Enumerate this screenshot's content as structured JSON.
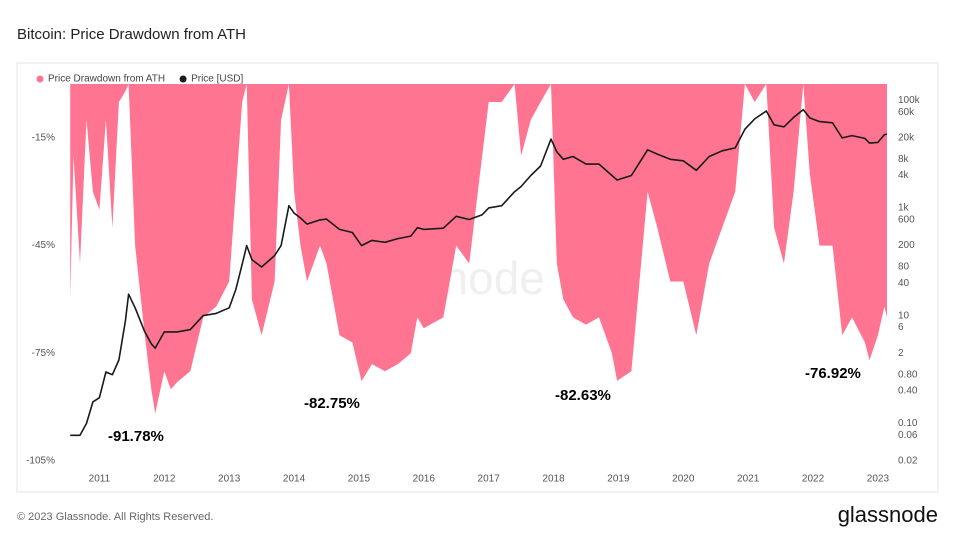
{
  "chart_data": {
    "type": "area-line",
    "title": "Bitcoin: Price Drawdown from ATH",
    "x": [
      2010.55,
      2010.6,
      2010.7,
      2010.8,
      2010.9,
      2011.0,
      2011.1,
      2011.2,
      2011.3,
      2011.4,
      2011.45,
      2011.55,
      2011.7,
      2011.8,
      2011.86,
      2012.0,
      2012.1,
      2012.2,
      2012.4,
      2012.6,
      2012.8,
      2013.0,
      2013.1,
      2013.2,
      2013.27,
      2013.35,
      2013.5,
      2013.7,
      2013.8,
      2013.92,
      2014.0,
      2014.1,
      2014.2,
      2014.4,
      2014.5,
      2014.7,
      2014.9,
      2015.04,
      2015.2,
      2015.4,
      2015.6,
      2015.8,
      2015.9,
      2016.0,
      2016.3,
      2016.5,
      2016.7,
      2016.9,
      2017.0,
      2017.2,
      2017.4,
      2017.5,
      2017.65,
      2017.8,
      2017.96,
      2018.05,
      2018.15,
      2018.3,
      2018.5,
      2018.7,
      2018.9,
      2018.98,
      2019.2,
      2019.45,
      2019.6,
      2019.8,
      2020.0,
      2020.2,
      2020.4,
      2020.6,
      2020.8,
      2020.95,
      2021.1,
      2021.28,
      2021.4,
      2021.55,
      2021.7,
      2021.85,
      2021.95,
      2022.1,
      2022.3,
      2022.45,
      2022.6,
      2022.8,
      2022.87,
      2023.0,
      2023.1,
      2023.14
    ],
    "series": [
      {
        "name": "Price Drawdown from ATH",
        "color": "#ff7591",
        "values": [
          -60,
          -20,
          -50,
          -10,
          -30,
          -35,
          -10,
          -40,
          -5,
          -2,
          0,
          -45,
          -70,
          -85,
          -91.78,
          -80,
          -85,
          -83,
          -80,
          -65,
          -62,
          -55,
          -30,
          -5,
          0,
          -60,
          -70,
          -55,
          -10,
          0,
          -30,
          -45,
          -55,
          -45,
          -50,
          -70,
          -72,
          -82.75,
          -78,
          -80,
          -78,
          -75,
          -65,
          -68,
          -65,
          -45,
          -50,
          -20,
          -5,
          -5,
          0,
          -20,
          -10,
          -5,
          0,
          -50,
          -60,
          -65,
          -67,
          -65,
          -75,
          -82.63,
          -80,
          -30,
          -40,
          -55,
          -55,
          -70,
          -50,
          -40,
          -30,
          0,
          -5,
          0,
          -40,
          -50,
          -30,
          0,
          -25,
          -45,
          -45,
          -70,
          -65,
          -72,
          -76.92,
          -70,
          -62,
          -65
        ]
      },
      {
        "name": "Price [USD]",
        "color": "#1a1a1a",
        "axis": "y2",
        "values": [
          0.06,
          0.06,
          0.06,
          0.1,
          0.25,
          0.3,
          0.9,
          0.8,
          1.5,
          8,
          25,
          14,
          5,
          3,
          2.5,
          5,
          5,
          5,
          5.5,
          10,
          11,
          14,
          30,
          90,
          200,
          110,
          80,
          130,
          200,
          1100,
          800,
          650,
          500,
          600,
          620,
          400,
          350,
          200,
          250,
          230,
          270,
          300,
          430,
          400,
          420,
          700,
          610,
          750,
          1000,
          1100,
          2000,
          2500,
          4000,
          6000,
          19000,
          11000,
          8000,
          9000,
          6500,
          6500,
          4000,
          3300,
          4000,
          12000,
          10000,
          8000,
          7500,
          5000,
          9000,
          11500,
          13000,
          29000,
          45000,
          63000,
          35000,
          32000,
          48000,
          67000,
          47000,
          40000,
          38000,
          20000,
          22000,
          19500,
          16000,
          16500,
          23000,
          23500
        ]
      }
    ],
    "xlim": [
      2010.5,
      2023.14
    ],
    "xticks": [
      2011,
      2012,
      2013,
      2014,
      2015,
      2016,
      2017,
      2018,
      2019,
      2020,
      2021,
      2022,
      2023
    ],
    "ylim": [
      -105,
      0
    ],
    "yticks": [
      {
        "value": -15,
        "label": "-15%"
      },
      {
        "value": -45,
        "label": "-45%"
      },
      {
        "value": -75,
        "label": "-75%"
      },
      {
        "value": -105,
        "label": "-105%"
      }
    ],
    "y2lim": [
      0.02,
      200000
    ],
    "y2_log": true,
    "y2ticks": [
      {
        "value": 100000,
        "label": "100k"
      },
      {
        "value": 60000,
        "label": "60k"
      },
      {
        "value": 20000,
        "label": "20k"
      },
      {
        "value": 8000,
        "label": "8k"
      },
      {
        "value": 4000,
        "label": "4k"
      },
      {
        "value": 1000,
        "label": "1k"
      },
      600,
      200,
      80,
      40,
      10,
      6,
      2,
      {
        "value": 0.8,
        "label": "0.80"
      },
      {
        "value": 0.4,
        "label": "0.40"
      },
      {
        "value": 0.1,
        "label": "0.10"
      },
      0.06,
      0.02
    ],
    "annotations": [
      "-91.78%",
      "-82.75%",
      "-82.63%",
      "-76.92%"
    ],
    "legend": "top-left",
    "grid": false,
    "footer": "© 2023 Glassnode. All Rights Reserved.",
    "brand": "glassnode"
  }
}
